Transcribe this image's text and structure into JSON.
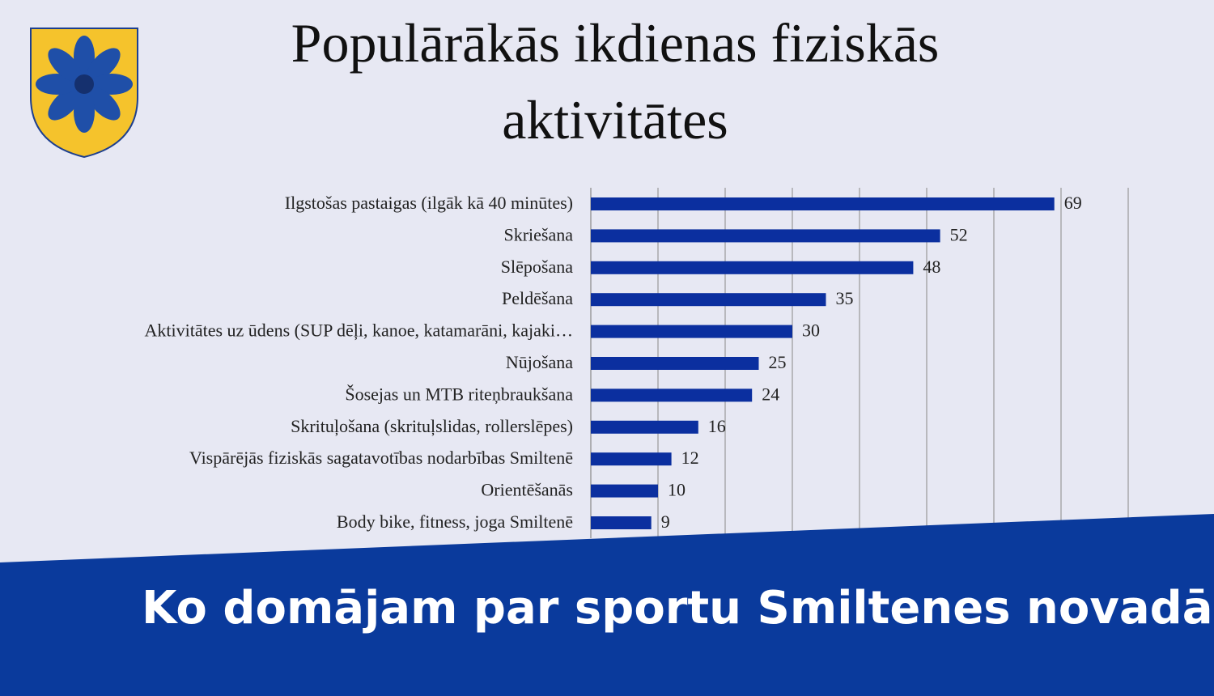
{
  "chart_data": {
    "type": "bar",
    "orientation": "horizontal",
    "title": "Populārākās ikdienas fiziskās aktivitātes",
    "categories": [
      "Ilgstošas pastaigas (ilgāk kā 40 minūtes)",
      "Skriešana",
      "Slēpošana",
      "Peldēšana",
      "Aktivitātes uz ūdens (SUP dēļi, kanoe, katamarāni, kajaki…",
      "Nūjošana",
      "Šosejas un MTB riteņbraukšana",
      "Skrituļošana (skrituļslidas, rollerslēpes)",
      "Vispārējās fiziskās sagatavotības nodarbības Smiltenē",
      "Orientēšanās",
      "Body bike, fitness, joga Smiltenē"
    ],
    "values": [
      69,
      52,
      48,
      35,
      30,
      25,
      24,
      16,
      12,
      10,
      9
    ],
    "color": "#0b2f9f",
    "xlim": [
      0,
      80
    ],
    "xticks": [
      0,
      10,
      20,
      30,
      40,
      50,
      60,
      70,
      80
    ],
    "grid": true
  },
  "banner": {
    "text": "Ko domājam par sportu Smiltenes novadā?"
  }
}
